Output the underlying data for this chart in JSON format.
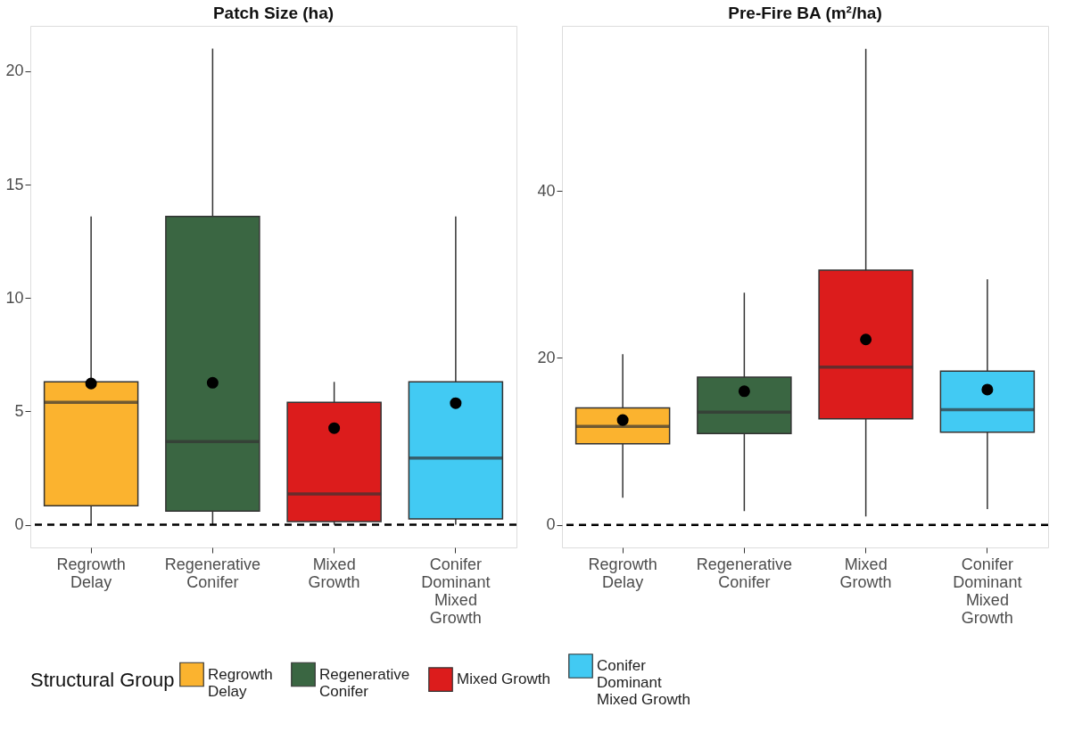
{
  "chart_data": [
    {
      "type": "box",
      "title": "Patch Size (ha)",
      "categories": [
        "Regrowth Delay",
        "Regenerative Conifer",
        "Mixed Growth",
        "Conifer Dominant Mixed Growth"
      ],
      "series": [
        {
          "name": "Regrowth Delay",
          "color": "#fbb32f",
          "boxes": [
            {
              "low": 0,
              "q1": 0.84,
              "median": 5.4,
              "q3": 6.3,
              "high": 13.6,
              "mean": 6.23
            },
            null,
            null,
            null
          ]
        },
        {
          "name": "Regenerative Conifer",
          "color": "#3a6642",
          "boxes": [
            null,
            {
              "low": 0,
              "q1": 0.6,
              "median": 3.67,
              "q3": 13.6,
              "high": 21.0,
              "mean": 6.26
            },
            null,
            null
          ]
        },
        {
          "name": "Mixed Growth",
          "color": "#dc1c1c",
          "boxes": [
            null,
            null,
            {
              "low": 0,
              "q1": 0.14,
              "median": 1.36,
              "q3": 5.4,
              "high": 6.3,
              "mean": 4.26
            },
            null
          ]
        },
        {
          "name": "Conifer Dominant Mixed Growth",
          "color": "#42caf3",
          "boxes": [
            null,
            null,
            null,
            {
              "low": 0,
              "q1": 0.26,
              "median": 2.94,
              "q3": 6.3,
              "high": 13.6,
              "mean": 5.36
            }
          ]
        }
      ],
      "ylim": [
        -1.0,
        22.0
      ],
      "yticks": [
        0,
        5,
        10,
        15,
        20
      ],
      "ref_lines": [
        {
          "axis": "y",
          "value": 0,
          "color": "#000000",
          "line_style": "dashed"
        }
      ],
      "legend": "bottom",
      "legend_title": "Structural Group",
      "grid": false
    },
    {
      "type": "box",
      "title": "Pre-Fire BA (m²/ha)",
      "categories": [
        "Regrowth Delay",
        "Regenerative Conifer",
        "Mixed Growth",
        "Conifer Dominant Mixed Growth"
      ],
      "series": [
        {
          "name": "Regrowth Delay",
          "color": "#fbb32f",
          "boxes": [
            {
              "low": 3.25,
              "q1": 9.7,
              "median": 11.8,
              "q3": 14.0,
              "high": 20.45,
              "mean": 12.55
            },
            null,
            null,
            null
          ]
        },
        {
          "name": "Regenerative Conifer",
          "color": "#3a6642",
          "boxes": [
            null,
            {
              "low": 1.65,
              "q1": 10.95,
              "median": 13.5,
              "q3": 17.7,
              "high": 27.8,
              "mean": 16.0
            },
            null,
            null
          ]
        },
        {
          "name": "Mixed Growth",
          "color": "#dc1c1c",
          "boxes": [
            null,
            null,
            {
              "low": 1.0,
              "q1": 12.7,
              "median": 18.9,
              "q3": 30.5,
              "high": 57.0,
              "mean": 22.2
            },
            null
          ]
        },
        {
          "name": "Conifer Dominant Mixed Growth",
          "color": "#42caf3",
          "boxes": [
            null,
            null,
            null,
            {
              "low": 1.9,
              "q1": 11.1,
              "median": 13.8,
              "q3": 18.4,
              "high": 29.4,
              "mean": 16.2
            }
          ]
        }
      ],
      "ylim": [
        -2.7,
        59.75
      ],
      "yticks": [
        0,
        20,
        40
      ],
      "ref_lines": [
        {
          "axis": "y",
          "value": 0,
          "color": "#000000",
          "line_style": "dashed"
        }
      ],
      "grid": false
    }
  ]
}
